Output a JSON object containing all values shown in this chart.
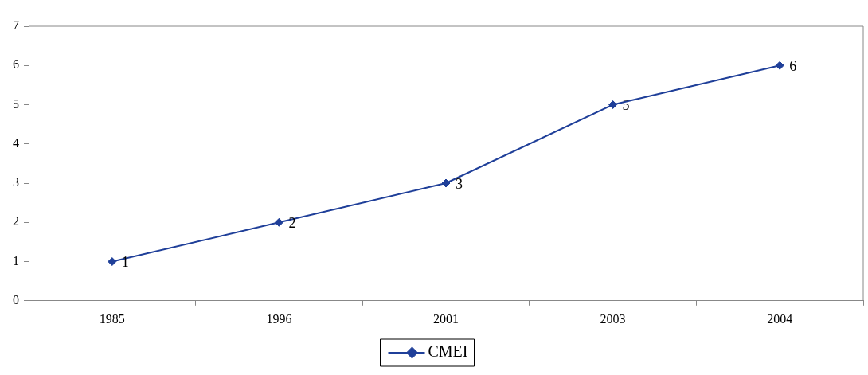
{
  "chart_data": {
    "type": "line",
    "categories": [
      "1985",
      "1996",
      "2001",
      "2003",
      "2004"
    ],
    "series": [
      {
        "name": "CMEI",
        "color": "#1f3f99",
        "values": [
          1,
          2,
          3,
          5,
          6
        ]
      }
    ],
    "ylim": [
      0,
      7
    ],
    "yticks": [
      0,
      1,
      2,
      3,
      4,
      5,
      6,
      7
    ],
    "grid": false,
    "legend": "bottom",
    "marker": "diamond",
    "line_style": "solid",
    "data_labels": true
  }
}
